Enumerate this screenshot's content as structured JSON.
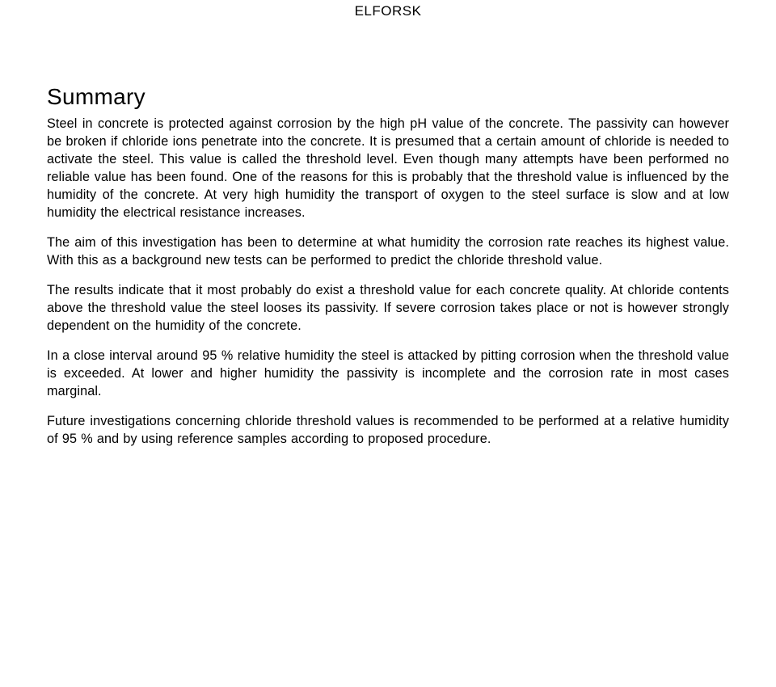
{
  "header": {
    "brand": "ELFORSK"
  },
  "document": {
    "title": "Summary",
    "background_color": "#ffffff",
    "text_color": "#000000",
    "title_fontsize": 28,
    "body_fontsize": 16.2,
    "line_height": 1.36,
    "paragraphs": [
      "Steel in concrete is protected against corrosion by the high pH value of the concrete. The passivity can however be broken if chloride ions penetrate into the concrete. It is presumed that a certain amount of chloride is needed to activate the steel. This value is called the threshold level. Even though many attempts have been performed no reliable value has been found. One of the reasons for this is probably that the threshold value is influenced by the humidity of the concrete. At very high humidity the transport of oxygen to the steel surface is slow and at low humidity the electrical resistance increases.",
      "The aim of this investigation has been to determine at what humidity the corrosion rate reaches its highest value. With this as a background new tests can be performed to predict the chloride threshold value.",
      "The results indicate that it most probably do exist a threshold value for each concrete quality. At chloride contents above the threshold value the steel looses its passivity. If severe corrosion takes place or not is however strongly dependent on the humidity of the concrete.",
      "In a close interval around 95 % relative humidity the steel is attacked by pitting corrosion when the threshold value is exceeded. At lower and higher humidity the passivity is incomplete and the corrosion rate in most cases marginal.",
      "Future investigations concerning chloride threshold values is recommended to be performed at a relative humidity of 95 % and by using reference samples according to proposed procedure."
    ]
  }
}
